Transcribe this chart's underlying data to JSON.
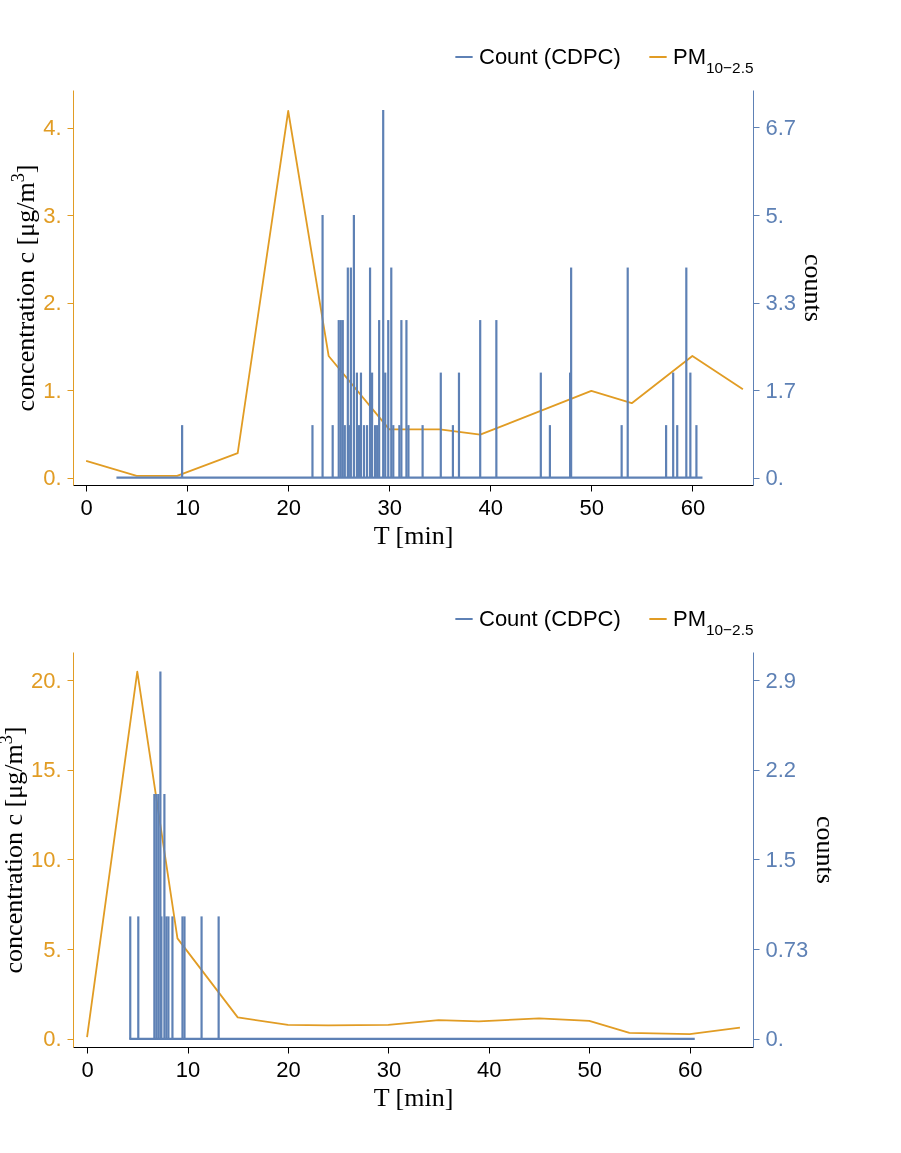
{
  "chart_data": [
    {
      "type": "line",
      "xlabel": "T [min]",
      "ylabel": "concentration c [μg/m$^{3}$]",
      "y2label": "counts",
      "legend": "top right",
      "xlim": [
        -1.3,
        66
      ],
      "xticks": [
        0,
        10,
        20,
        30,
        40,
        50,
        60
      ],
      "ylim": [
        -0.085,
        4.43
      ],
      "yticks": [
        {
          "value": 0,
          "label": "0."
        },
        {
          "value": 1,
          "label": "1."
        },
        {
          "value": 2,
          "label": "2."
        },
        {
          "value": 3,
          "label": "3."
        },
        {
          "value": 4,
          "label": "4."
        }
      ],
      "y2lim": [
        -0.14,
        7.38
      ],
      "y2ticks": [
        {
          "value": 0,
          "label": "0."
        },
        {
          "value": 1.667,
          "label": "1.7"
        },
        {
          "value": 3.333,
          "label": "3.3"
        },
        {
          "value": 5,
          "label": "5."
        },
        {
          "value": 6.667,
          "label": "6.7"
        }
      ],
      "series": [
        {
          "name": "Count (CDPC)",
          "type": "bar",
          "axis": "y2",
          "color": "#5e81b5",
          "x": [
            3.0,
            9.5,
            22.4,
            23.4,
            24.4,
            25.0,
            25.2,
            25.4,
            25.6,
            25.9,
            26.0,
            26.2,
            26.5,
            26.8,
            27.0,
            27.2,
            27.5,
            27.8,
            28.1,
            28.3,
            28.6,
            28.8,
            29.0,
            29.4,
            29.6,
            29.9,
            30.2,
            30.4,
            31.0,
            31.2,
            31.7,
            31.9,
            33.3,
            35.1,
            36.3,
            36.9,
            39.0,
            40.6,
            45.0,
            45.9,
            47.9,
            48.0,
            53.0,
            53.6,
            57.4,
            58.1,
            58.5,
            59.4,
            59.8,
            60.4,
            61.0
          ],
          "values": [
            0,
            1,
            1,
            5,
            1,
            3,
            3,
            3,
            1,
            4,
            1,
            4,
            5,
            2,
            1,
            2,
            1,
            1,
            4,
            2,
            1,
            1,
            3,
            7,
            2,
            3,
            4,
            1,
            1,
            3,
            3,
            1,
            1,
            2,
            1,
            2,
            3,
            3,
            2,
            1,
            2,
            4,
            1,
            4,
            1,
            2,
            1,
            4,
            2,
            1,
            0
          ]
        },
        {
          "name": "PM$_{10−2.5}$",
          "axis": "y",
          "color": "#e19c24",
          "x": [
            0,
            5,
            9,
            15,
            20,
            24,
            30,
            35,
            39,
            50,
            54,
            60,
            65
          ],
          "values": [
            0.19,
            0.02,
            0.02,
            0.28,
            4.19,
            1.39,
            0.55,
            0.55,
            0.49,
            0.99,
            0.85,
            1.39,
            1.01
          ]
        }
      ]
    },
    {
      "type": "line",
      "xlabel": "T [min]",
      "ylabel": "concentration c [μg/m$^{3}$]",
      "y2label": "counts",
      "legend": "top right",
      "xlim": [
        -1.4,
        66.3
      ],
      "xticks": [
        0,
        10,
        20,
        30,
        40,
        50,
        60
      ],
      "ylim": [
        -0.46,
        21.57
      ],
      "yticks": [
        {
          "value": 0,
          "label": "0."
        },
        {
          "value": 5,
          "label": "5."
        },
        {
          "value": 10,
          "label": "10."
        },
        {
          "value": 15,
          "label": "15."
        },
        {
          "value": 20,
          "label": "20."
        }
      ],
      "y2lim": [
        -0.067,
        3.16
      ],
      "y2ticks": [
        {
          "value": 0,
          "label": "0."
        },
        {
          "value": 0.732,
          "label": "0.73"
        },
        {
          "value": 1.465,
          "label": "1.5"
        },
        {
          "value": 2.197,
          "label": "2.2"
        },
        {
          "value": 2.93,
          "label": "2.9"
        }
      ],
      "series": [
        {
          "name": "Count (CDPC)",
          "type": "bar",
          "axis": "y2",
          "color": "#5e81b5",
          "x": [
            4.2,
            4.3,
            5.1,
            6.7,
            6.9,
            7.1,
            7.3,
            7.4,
            7.7,
            7.9,
            8.1,
            8.5,
            9.5,
            9.7,
            11.4,
            13.1,
            60.5
          ],
          "values": [
            0,
            1,
            1,
            2,
            2,
            2,
            3,
            1,
            2,
            1,
            1,
            1,
            1,
            1,
            1,
            1,
            0
          ]
        },
        {
          "name": "PM$_{10−2.5}$",
          "axis": "y",
          "color": "#e19c24",
          "x": [
            0,
            5,
            9,
            15,
            20,
            24,
            30,
            35,
            39,
            45,
            50,
            54,
            60,
            65
          ],
          "values": [
            0.09,
            20.48,
            5.6,
            1.19,
            0.77,
            0.75,
            0.77,
            1.04,
            0.97,
            1.14,
            1.0,
            0.33,
            0.26,
            0.62
          ]
        }
      ]
    }
  ]
}
